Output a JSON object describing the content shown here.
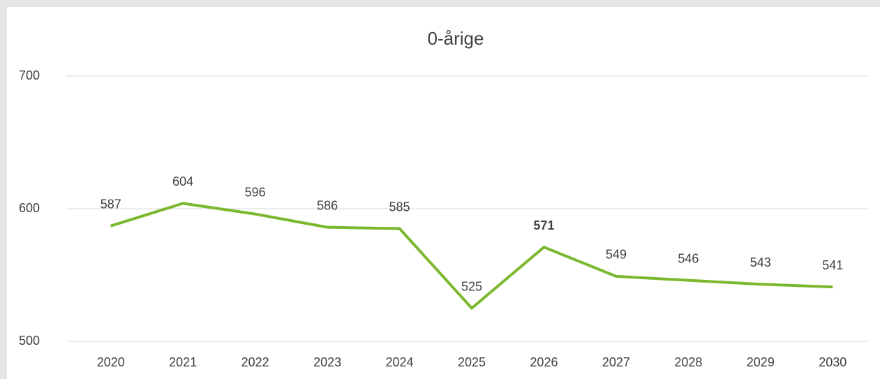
{
  "chart_data": {
    "type": "line",
    "title": "0-årige",
    "categories": [
      "2020",
      "2021",
      "2022",
      "2023",
      "2024",
      "2025",
      "2026",
      "2027",
      "2028",
      "2029",
      "2030"
    ],
    "values": [
      587,
      604,
      596,
      586,
      585,
      525,
      571,
      549,
      546,
      543,
      541
    ],
    "color": "#7cb82f",
    "ylim": [
      500,
      700
    ],
    "yticks": [
      500,
      600,
      700
    ],
    "grid": true,
    "bold_label_index": 6
  }
}
